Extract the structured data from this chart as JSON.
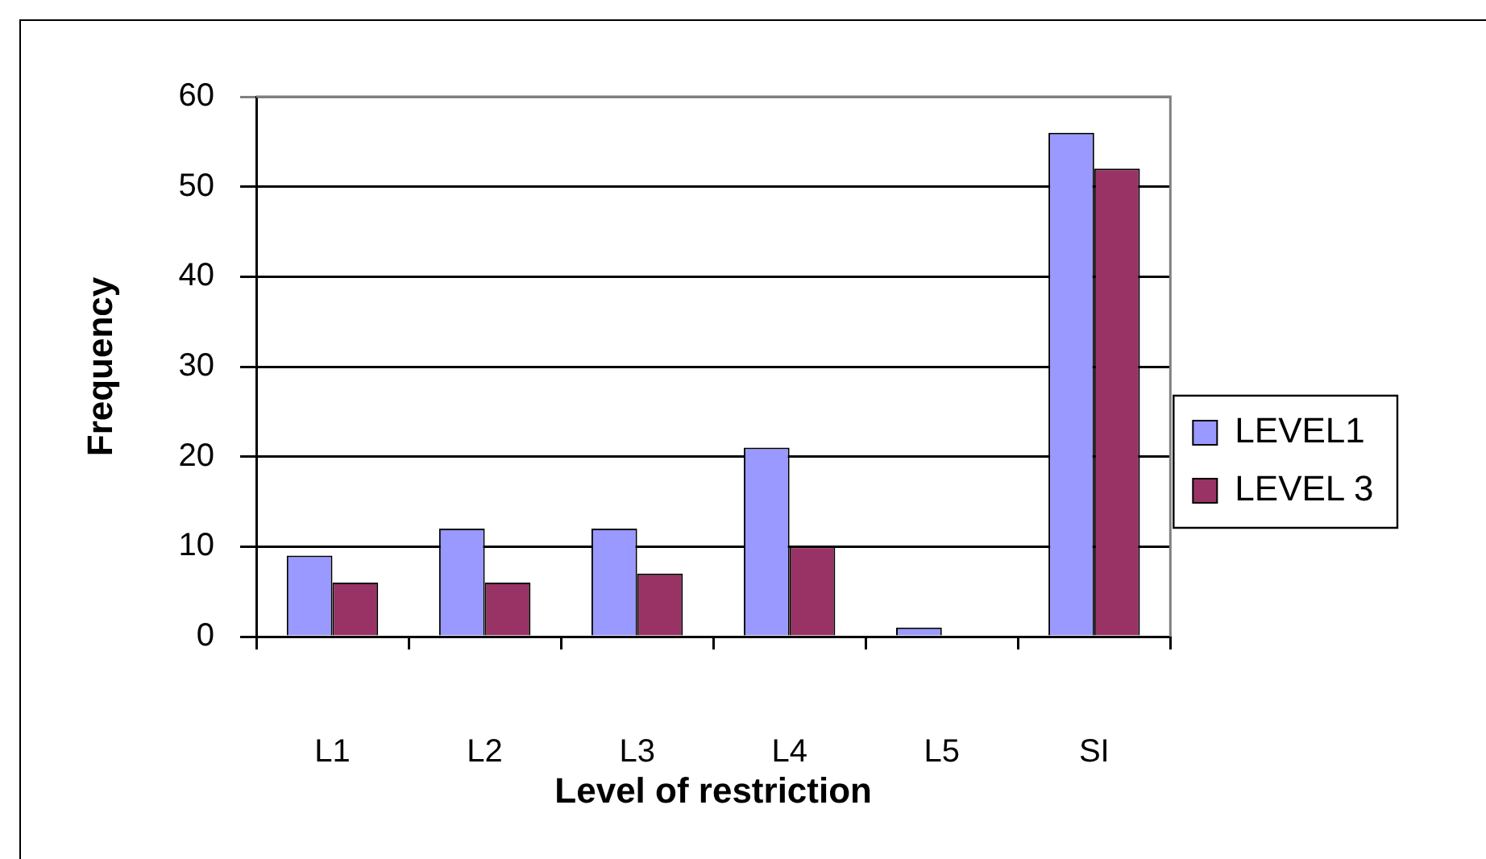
{
  "chart_data": {
    "type": "bar",
    "xlabel": "Level of restriction",
    "ylabel": "Frequency",
    "categories": [
      "L1",
      "L2",
      "L3",
      "L4",
      "L5",
      "SI"
    ],
    "series": [
      {
        "name": "LEVEL1",
        "color": "#9999ff",
        "values": [
          9,
          12,
          12,
          21,
          1,
          56
        ]
      },
      {
        "name": "LEVEL 3",
        "color": "#993366",
        "values": [
          6,
          6,
          7,
          10,
          0,
          52
        ]
      }
    ],
    "ylim": [
      0,
      60
    ],
    "yticks": [
      0,
      10,
      20,
      30,
      40,
      50,
      60
    ],
    "grid": "y",
    "legend": "right"
  }
}
